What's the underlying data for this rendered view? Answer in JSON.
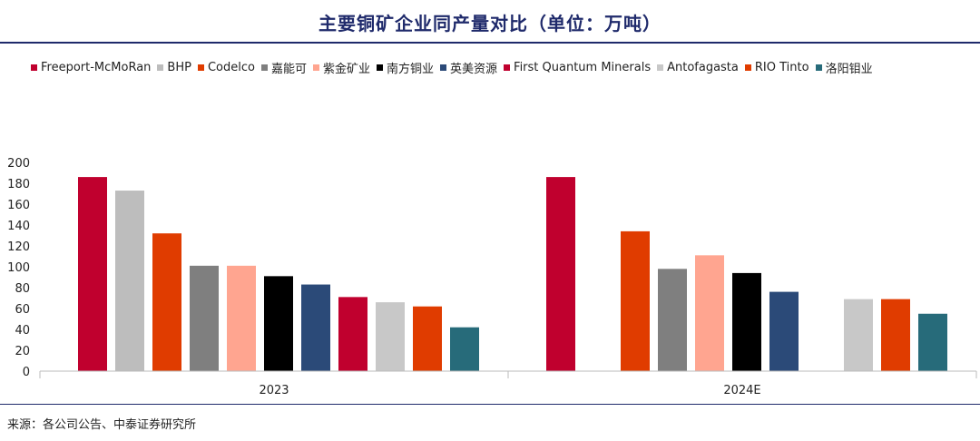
{
  "header": {
    "title": "主要铜矿企业同产量对比（单位：万吨）"
  },
  "footer": {
    "source": "来源：各公司公告、中泰证券研究所"
  },
  "chart_data": {
    "type": "bar",
    "title": "主要铜矿企业同产量对比（单位：万吨）",
    "xlabel": "",
    "ylabel": "",
    "ylim": [
      0,
      200
    ],
    "yticks": [
      0,
      20,
      40,
      60,
      80,
      100,
      120,
      140,
      160,
      180,
      200
    ],
    "grid": false,
    "legend_position": "top",
    "categories": [
      "2023",
      "2024E"
    ],
    "series": [
      {
        "name": "Freeport-McMoRan",
        "color": "#c0002e",
        "values": [
          186,
          186
        ]
      },
      {
        "name": "BHP",
        "color": "#bdbdbd",
        "values": [
          173,
          null
        ]
      },
      {
        "name": "Codelco",
        "color": "#e03c00",
        "values": [
          132,
          134
        ]
      },
      {
        "name": "嘉能可",
        "color": "#7f7f7f",
        "values": [
          101,
          98
        ]
      },
      {
        "name": "紫金矿业",
        "color": "#ffa590",
        "values": [
          101,
          111
        ]
      },
      {
        "name": "南方铜业",
        "color": "#000000",
        "values": [
          91,
          94
        ]
      },
      {
        "name": "英美资源",
        "color": "#2b4a78",
        "values": [
          83,
          76
        ]
      },
      {
        "name": "First Quantum Minerals",
        "color": "#c0002e",
        "values": [
          71,
          null
        ]
      },
      {
        "name": "Antofagasta",
        "color": "#c8c8c8",
        "values": [
          66,
          69
        ]
      },
      {
        "name": "RIO Tinto",
        "color": "#e03c00",
        "values": [
          62,
          69
        ]
      },
      {
        "name": "洛阳钼业",
        "color": "#276b7a",
        "values": [
          42,
          55
        ]
      }
    ]
  }
}
